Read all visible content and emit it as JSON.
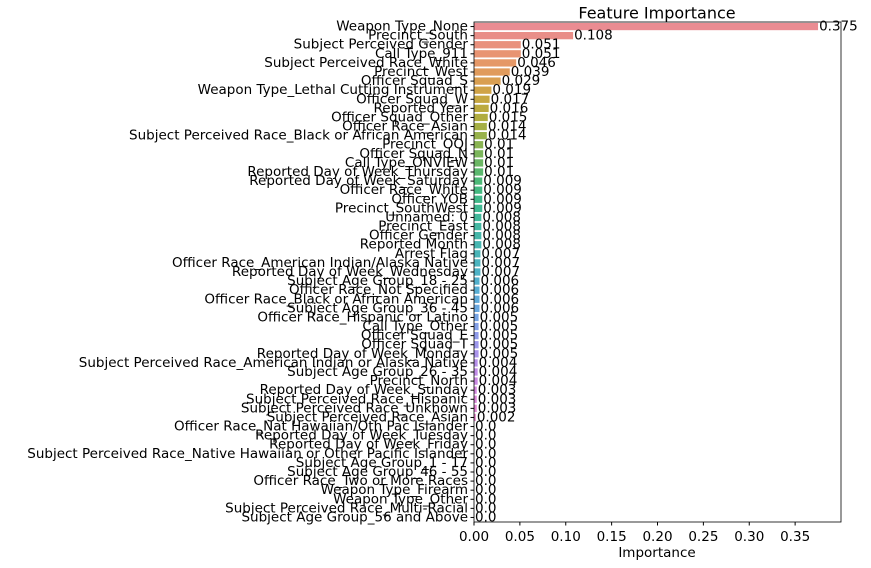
{
  "chart_data": {
    "type": "barh",
    "title": "Feature Importance",
    "xlabel": "Importance",
    "categories": [
      "Weapon Type_None",
      "Precinct_South",
      "Subject Perceived Gender",
      "Call Type_911",
      "Subject Perceived Race_White",
      "Precinct_West",
      "Officer Squad_S",
      "Weapon Type_Lethal Cutting Instrument",
      "Officer Squad_W",
      "Reported Year",
      "Officer Squad_Other",
      "Officer Race_Asian",
      "Subject Perceived Race_Black or African American",
      "Precinct_OOJ",
      "Officer Squad_N",
      "Call Type_ONVIEW",
      "Reported Day of Week_Thursday",
      "Reported Day of Week_Saturday",
      "Officer Race_White",
      "Officer YOB",
      "Precinct_SouthWest",
      "Unnamed: 0",
      "Precinct_East",
      "Officer Gender",
      "Reported Month",
      "Arrest Flag",
      "Officer Race_American Indian/Alaska Native",
      "Reported Day of Week_Wednesday",
      "Subject Age Group_18 - 25",
      "Officer Race_Not Specified",
      "Officer Race_Black or African American",
      "Subject Age Group_36 - 45",
      "Officer Race_Hispanic or Latino",
      "Call Type_Other",
      "Officer Squad_E",
      "Officer Squad_T",
      "Reported Day of Week_Monday",
      "Subject Perceived Race_American Indian or Alaska Native",
      "Subject Age Group_26 - 35",
      "Precinct_North",
      "Reported Day of Week_Sunday",
      "Subject Perceived Race_Hispanic",
      "Subject Perceived Race_Unknown",
      "Subject Perceived Race_Asian",
      "Officer Race_Nat Hawaiian/Oth Pac Islander",
      "Reported Day of Week_Tuesday",
      "Reported Day of Week_Friday",
      "Subject Perceived Race_Native Hawaiian or Other Pacific Islander",
      "Subject Age Group_1 - 17",
      "Subject Age Group_46 - 55",
      "Officer Race_Two or More Races",
      "Weapon Type_Firearm",
      "Weapon Type_Other",
      "Subject Perceived Race_Multi-Racial",
      "Subject Age Group_56 and Above"
    ],
    "values": [
      0.375,
      0.108,
      0.051,
      0.051,
      0.046,
      0.039,
      0.029,
      0.019,
      0.017,
      0.016,
      0.015,
      0.014,
      0.014,
      0.01,
      0.01,
      0.01,
      0.01,
      0.009,
      0.009,
      0.009,
      0.009,
      0.008,
      0.008,
      0.008,
      0.008,
      0.007,
      0.007,
      0.007,
      0.006,
      0.006,
      0.006,
      0.006,
      0.005,
      0.005,
      0.005,
      0.005,
      0.005,
      0.004,
      0.004,
      0.004,
      0.003,
      0.003,
      0.003,
      0.002,
      0,
      0,
      0,
      0,
      0,
      0,
      0,
      0,
      0,
      0,
      0
    ],
    "value_labels": [
      "0.375",
      "0.108",
      "0.051",
      "0.051",
      "0.046",
      "0.039",
      "0.029",
      "0.019",
      "0.017",
      "0.016",
      "0.015",
      "0.014",
      "0.014",
      "0.01",
      "0.01",
      "0.01",
      "0.01",
      "0.009",
      "0.009",
      "0.009",
      "0.009",
      "0.008",
      "0.008",
      "0.008",
      "0.008",
      "0.007",
      "0.007",
      "0.007",
      "0.006",
      "0.006",
      "0.006",
      "0.006",
      "0.005",
      "0.005",
      "0.005",
      "0.005",
      "0.005",
      "0.004",
      "0.004",
      "0.004",
      "0.003",
      "0.003",
      "0.003",
      "0.002",
      "0.0",
      "0.0",
      "0.0",
      "0.0",
      "0.0",
      "0.0",
      "0.0",
      "0.0",
      "0.0",
      "0.0",
      "0.0"
    ],
    "colors": [
      "#ea8c92",
      "#e98e88",
      "#e9917d",
      "#e89472",
      "#e59867",
      "#e09b5c",
      "#d99f51",
      "#d0a347",
      "#c6a741",
      "#bcaa3f",
      "#b1ad40",
      "#a5af44",
      "#98b24b",
      "#8ab452",
      "#7bb65b",
      "#6bb764",
      "#5bb86e",
      "#4db978",
      "#45b981",
      "#41b98a",
      "#40b993",
      "#41b89b",
      "#43b8a3",
      "#45b7aa",
      "#47b6b1",
      "#49b5b8",
      "#4bb4bf",
      "#4eb2c6",
      "#52b0cd",
      "#58aed4",
      "#60abda",
      "#6aa8e0",
      "#76a4e5",
      "#83a0e8",
      "#909ceb",
      "#9d98ec",
      "#aa94ec",
      "#b690eb",
      "#c18ce8",
      "#cb89e4",
      "#d486df",
      "#dc84d9",
      "#e283d2",
      "#e684ca",
      "#e985c1",
      "#eb86b8",
      "#ec87af",
      "#ec88a7",
      "#ec899f",
      "#eb8a98",
      "#ea8b93",
      "#e98b90",
      "#e88b8d",
      "#e78b8b",
      "#e68b89"
    ],
    "xlim": [
      0,
      0.4
    ],
    "xticks": [
      {
        "value": 0,
        "label": "0.00"
      },
      {
        "value": 0.05,
        "label": "0.05"
      },
      {
        "value": 0.1,
        "label": "0.10"
      },
      {
        "value": 0.15,
        "label": "0.15"
      },
      {
        "value": 0.2,
        "label": "0.20"
      },
      {
        "value": 0.25,
        "label": "0.25"
      },
      {
        "value": 0.3,
        "label": "0.30"
      },
      {
        "value": 0.35,
        "label": "0.35"
      }
    ]
  }
}
